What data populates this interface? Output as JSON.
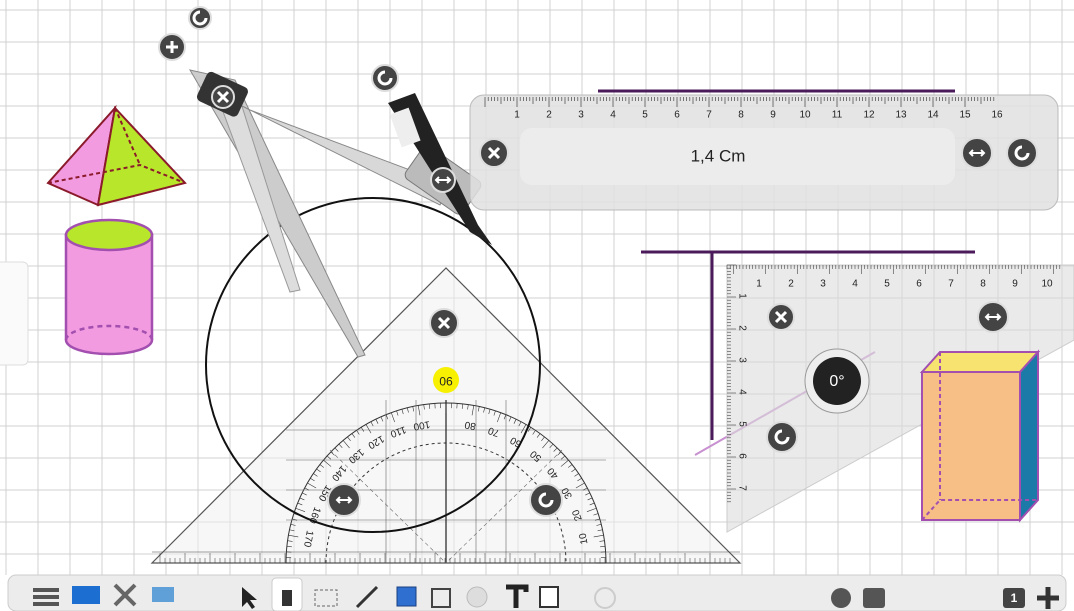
{
  "ruler": {
    "ticks": [
      "1",
      "2",
      "3",
      "4",
      "5",
      "6",
      "7",
      "8",
      "9",
      "10",
      "11",
      "12",
      "13",
      "14",
      "15",
      "16"
    ],
    "measurement": "1,4 Cm"
  },
  "set_square": {
    "x_ticks": [
      "1",
      "2",
      "3",
      "4",
      "5",
      "6",
      "7",
      "8",
      "9",
      "10"
    ],
    "y_ticks": [
      "1",
      "2",
      "3",
      "4",
      "5",
      "6",
      "7"
    ],
    "angle": "0°"
  },
  "protractor": {
    "marker": "90",
    "labels": [
      "10",
      "20",
      "30",
      "40",
      "50",
      "60",
      "70",
      "80",
      "90",
      "100",
      "110",
      "120",
      "130",
      "140",
      "150",
      "160",
      "170"
    ]
  },
  "toolbar": {
    "page_number": "1"
  }
}
